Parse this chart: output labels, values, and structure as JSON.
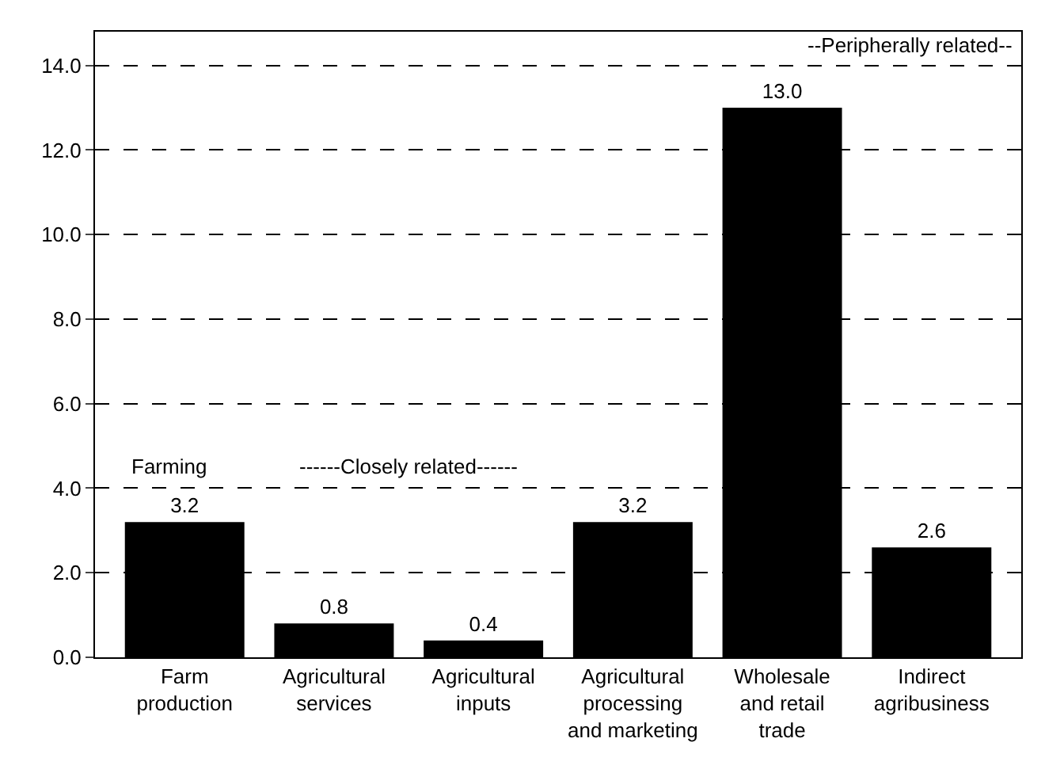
{
  "chart_data": {
    "type": "bar",
    "categories": [
      "Farm\nproduction",
      "Agricultural\nservices",
      "Agricultural\ninputs",
      "Agricultural\nprocessing\nand marketing",
      "Wholesale\nand retail\ntrade",
      "Indirect\nagribusiness"
    ],
    "values": [
      3.2,
      0.8,
      0.4,
      3.2,
      13.0,
      2.6
    ],
    "value_labels": [
      "3.2",
      "0.8",
      "0.4",
      "3.2",
      "13.0",
      "2.6"
    ],
    "color": "#000000",
    "ylim": [
      0,
      14.8
    ],
    "yticks": [
      {
        "value": 0,
        "label": "0.0"
      },
      {
        "value": 2,
        "label": "2.0"
      },
      {
        "value": 4,
        "label": "4.0"
      },
      {
        "value": 6,
        "label": "6.0"
      },
      {
        "value": 8,
        "label": "8.0"
      },
      {
        "value": 10,
        "label": "10.0"
      },
      {
        "value": 12,
        "label": "12.0"
      },
      {
        "value": 14,
        "label": "14.0"
      }
    ],
    "grid": "y",
    "annotations": [
      "Farming",
      "------Closely related------",
      "--Peripherally related--"
    ]
  }
}
